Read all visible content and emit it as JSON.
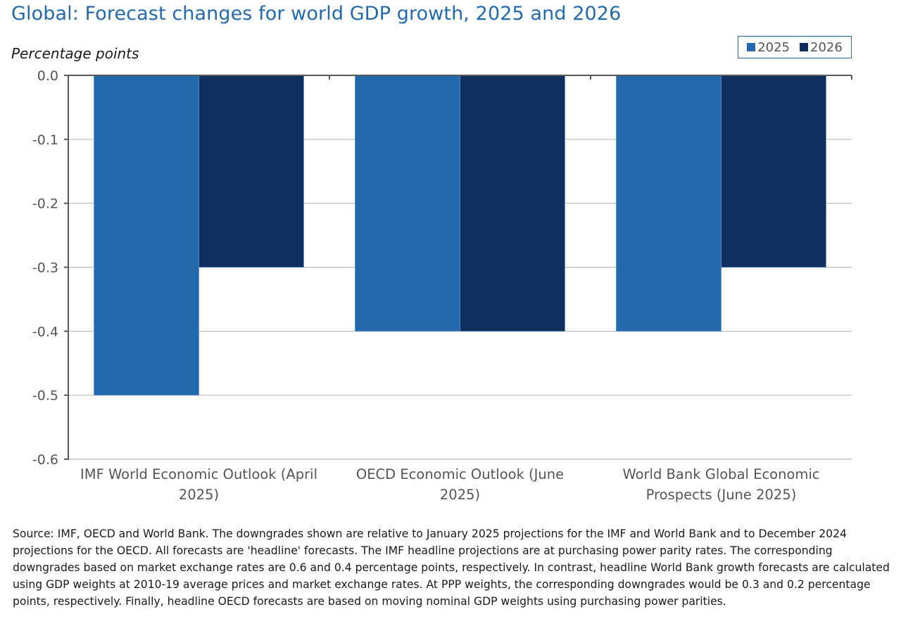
{
  "chart_data": {
    "type": "bar",
    "title": "Global: Forecast changes for world GDP growth, 2025 and 2026",
    "xlabel": "",
    "ylabel": "Percentage points",
    "ylim": [
      -0.6,
      0.0
    ],
    "yticks": [
      "0.0",
      "-0.1",
      "-0.2",
      "-0.3",
      "-0.4",
      "-0.5",
      "-0.6"
    ],
    "ytick_values": [
      0.0,
      -0.1,
      -0.2,
      -0.3,
      -0.4,
      -0.5,
      -0.6
    ],
    "grid": true,
    "legend_position": "top-right",
    "categories": [
      [
        "IMF World Economic Outlook (April",
        "2025)"
      ],
      [
        "OECD Economic Outlook (June",
        "2025)"
      ],
      [
        "World Bank Global Economic",
        "Prospects (June 2025)"
      ]
    ],
    "series": [
      {
        "name": "2025",
        "color": "#2369ad",
        "values": [
          -0.5,
          -0.4,
          -0.4
        ]
      },
      {
        "name": "2026",
        "color": "#0e2f5e",
        "values": [
          -0.3,
          -0.4,
          -0.3
        ]
      }
    ]
  },
  "note": "Source: IMF, OECD and World Bank. The downgrades shown are relative to January 2025 projections for the IMF and World Bank and to December 2024 projections for the OECD. All forecasts are 'headline' forecasts. The IMF headline projections are at purchasing power parity rates. The corresponding downgrades based on market exchange rates are 0.6  and 0.4 percentage points, respectively. In contrast, headline World Bank growth forecasts are calculated using GDP weights at 2010-19 average prices and market exchange rates. At PPP weights, the corresponding downgrades would be 0.3 and 0.2 percentage points, respectively. Finally, headline OECD forecasts are based on moving nominal GDP weights using purchasing power parities."
}
